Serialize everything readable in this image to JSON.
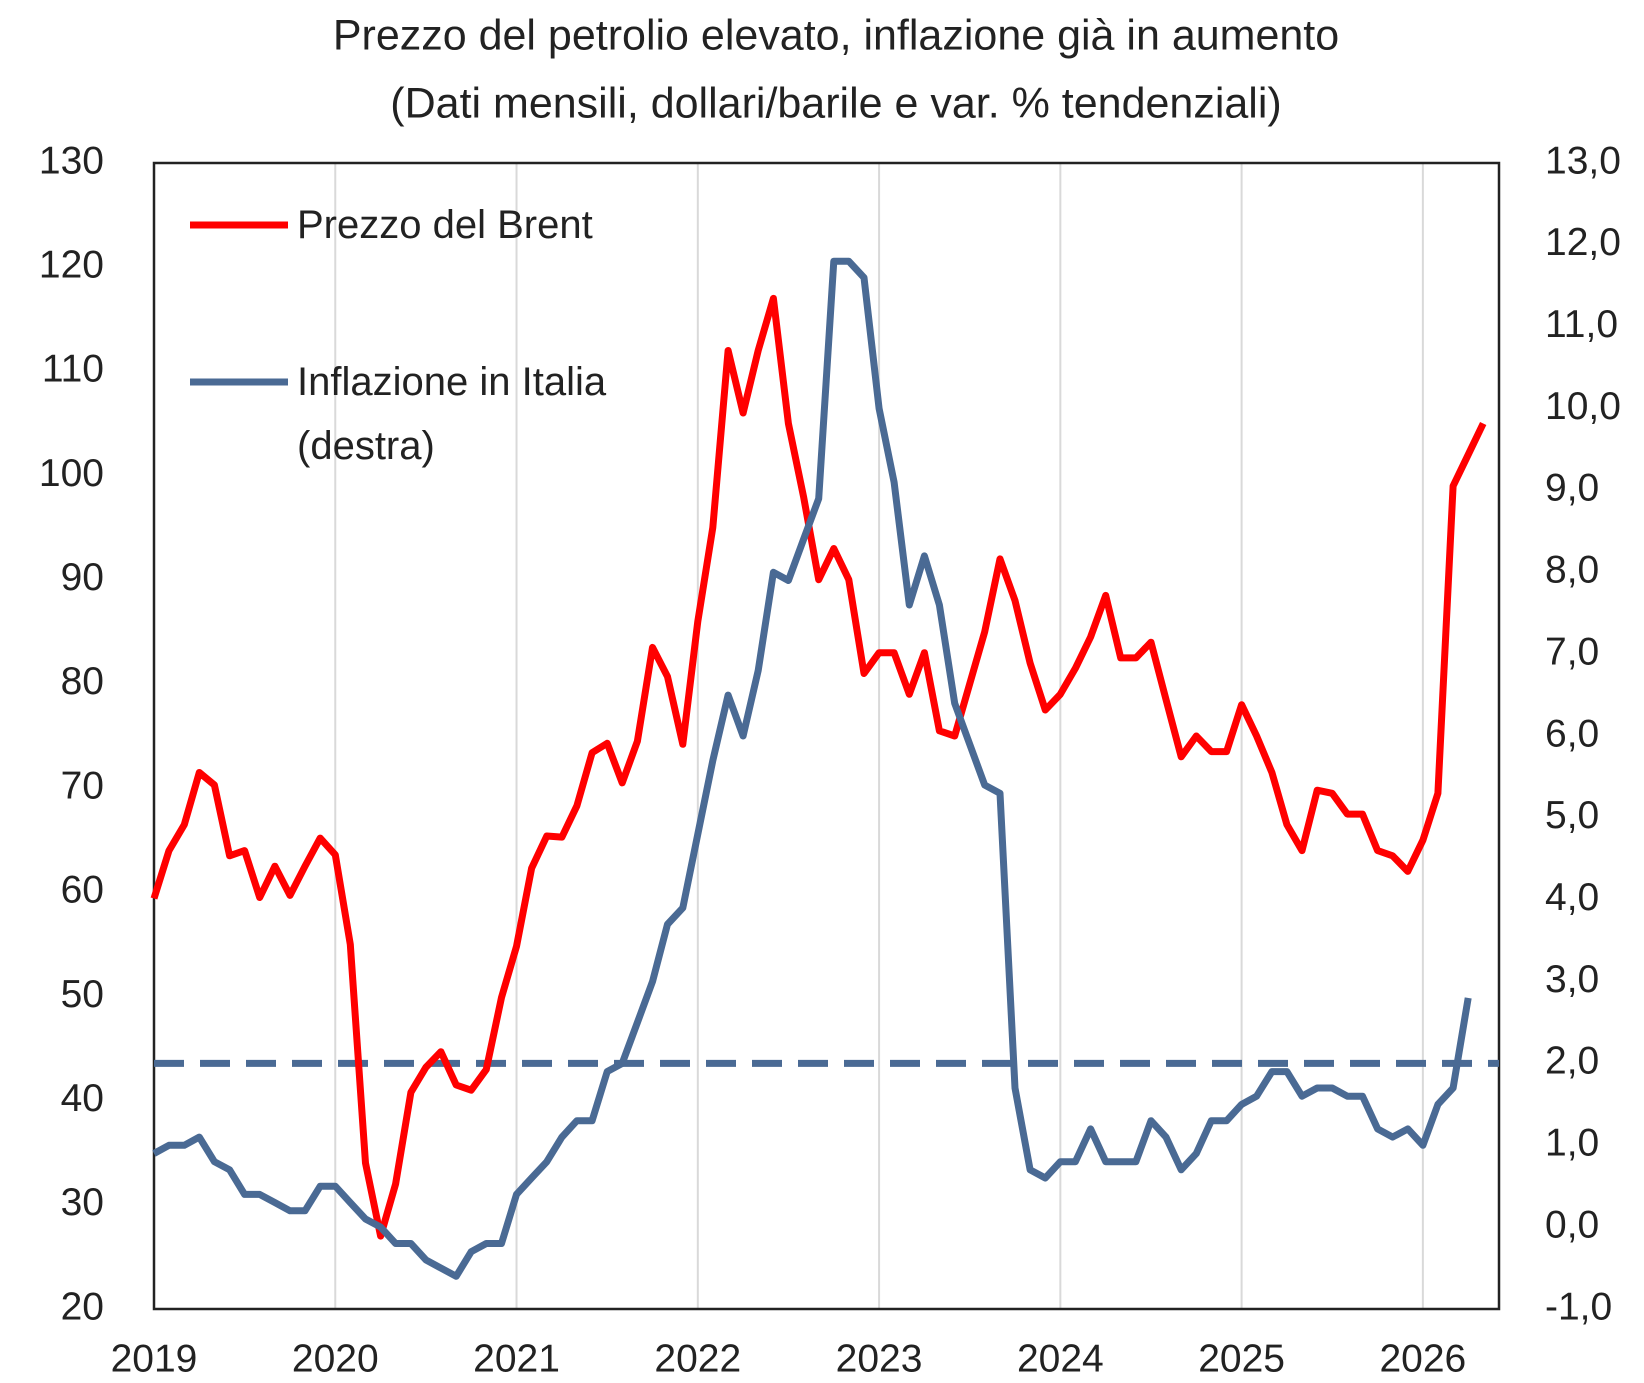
{
  "chart_data": {
    "type": "line",
    "title": "Prezzo del petrolio elevato, inflazione già in aumento",
    "subtitle": "(Dati mensili, dollari/barile e var. % tendenziali)",
    "x": [
      2019,
      2019.083,
      2019.167,
      2019.25,
      2019.333,
      2019.417,
      2019.5,
      2019.583,
      2019.667,
      2019.75,
      2019.833,
      2019.917,
      2020,
      2020.083,
      2020.167,
      2020.25,
      2020.333,
      2020.417,
      2020.5,
      2020.583,
      2020.667,
      2020.75,
      2020.833,
      2020.917,
      2021,
      2021.083,
      2021.167,
      2021.25,
      2021.333,
      2021.417,
      2021.5,
      2021.583,
      2021.667,
      2021.75,
      2021.833,
      2021.917,
      2022,
      2022.083,
      2022.167,
      2022.25,
      2022.333,
      2022.417,
      2022.5,
      2022.583,
      2022.667,
      2022.75,
      2022.833,
      2022.917,
      2023,
      2023.083,
      2023.167,
      2023.25,
      2023.333,
      2023.417,
      2023.5,
      2023.583,
      2023.667,
      2023.75,
      2023.833,
      2023.917,
      2024,
      2024.083,
      2024.167,
      2024.25,
      2024.333,
      2024.417,
      2024.5,
      2024.583,
      2024.667,
      2024.75,
      2024.833,
      2024.917,
      2025,
      2025.083,
      2025.167,
      2025.25,
      2025.333,
      2025.417,
      2025.5,
      2025.583,
      2025.667,
      2025.75,
      2025.833,
      2025.917,
      2026,
      2026.083,
      2026.167,
      2026.25,
      2026.333
    ],
    "series": [
      {
        "name": "Prezzo del Brent",
        "color": "#ff0000",
        "axis": "y",
        "values": [
          59.4,
          64,
          66.5,
          71.5,
          70.3,
          63.5,
          64,
          59.5,
          62.5,
          59.7,
          62.5,
          65.2,
          63.6,
          55,
          34,
          27,
          32,
          40.8,
          43.2,
          44.7,
          41.5,
          41,
          43,
          49.9,
          54.8,
          62.3,
          65.4,
          65.3,
          68.3,
          73.4,
          74.3,
          70.5,
          74.5,
          83.5,
          80.7,
          74.2,
          86,
          95,
          112,
          106,
          112,
          117,
          105,
          98,
          90,
          93,
          90,
          81,
          83,
          83,
          79,
          83,
          75.5,
          75,
          80,
          85,
          92,
          88,
          82,
          77.5,
          79,
          81.5,
          84.5,
          88.5,
          82.5,
          82.5,
          84,
          78.5,
          73,
          75,
          73.5,
          73.5,
          78,
          75,
          71.5,
          66.5,
          64,
          69.8,
          69.5,
          67.5,
          67.5,
          64,
          63.5,
          62,
          65,
          69.5,
          99,
          102,
          105
        ]
      },
      {
        "name": "Inflazione in Italia (destra)",
        "color": "#4a6a94",
        "axis": "y2",
        "values": [
          0.9,
          1.0,
          1.0,
          1.1,
          0.8,
          0.7,
          0.4,
          0.4,
          0.3,
          0.2,
          0.2,
          0.5,
          0.5,
          0.3,
          0.1,
          0.0,
          -0.2,
          -0.2,
          -0.4,
          -0.5,
          -0.6,
          -0.3,
          -0.2,
          -0.2,
          0.4,
          0.6,
          0.8,
          1.1,
          1.3,
          1.3,
          1.9,
          2.0,
          2.5,
          3.0,
          3.7,
          3.9,
          4.8,
          5.7,
          6.5,
          6.0,
          6.8,
          8.0,
          7.9,
          8.4,
          8.9,
          11.8,
          11.8,
          11.6,
          10.0,
          9.1,
          7.6,
          8.2,
          7.6,
          6.4,
          5.9,
          5.4,
          5.3,
          1.7,
          0.7,
          0.6,
          0.8,
          0.8,
          1.2,
          0.8,
          0.8,
          0.8,
          1.3,
          1.1,
          0.7,
          0.9,
          1.3,
          1.3,
          1.5,
          1.6,
          1.9,
          1.9,
          1.6,
          1.7,
          1.7,
          1.6,
          1.6,
          1.2,
          1.1,
          1.2,
          1.0,
          1.5,
          1.7,
          2.8,
          null
        ]
      }
    ],
    "reference_line": {
      "value": 2,
      "axis": "y2",
      "color": "#4a6a94",
      "style": "dashed"
    },
    "xlim": [
      2019,
      2026.42
    ],
    "xticks": [
      2019,
      2020,
      2021,
      2022,
      2023,
      2024,
      2025,
      2026
    ],
    "ylim": [
      20,
      130
    ],
    "yticks": [
      20,
      30,
      40,
      50,
      60,
      70,
      80,
      90,
      100,
      110,
      120,
      130
    ],
    "y2lim": [
      -1,
      13
    ],
    "y2ticks": [
      {
        "value": -1,
        "label": "-1,0"
      },
      {
        "value": 0,
        "label": "0,0"
      },
      {
        "value": 1,
        "label": "1,0"
      },
      {
        "value": 2,
        "label": "2,0"
      },
      {
        "value": 3,
        "label": "3,0"
      },
      {
        "value": 4,
        "label": "4,0"
      },
      {
        "value": 5,
        "label": "5,0"
      },
      {
        "value": 6,
        "label": "6,0"
      },
      {
        "value": 7,
        "label": "7,0"
      },
      {
        "value": 8,
        "label": "8,0"
      },
      {
        "value": 9,
        "label": "9,0"
      },
      {
        "value": 10,
        "label": "10,0"
      },
      {
        "value": 11,
        "label": "11,0"
      },
      {
        "value": 12,
        "label": "12,0"
      },
      {
        "value": 13,
        "label": "13,0"
      }
    ],
    "grid": "x",
    "legend": "top-left"
  }
}
